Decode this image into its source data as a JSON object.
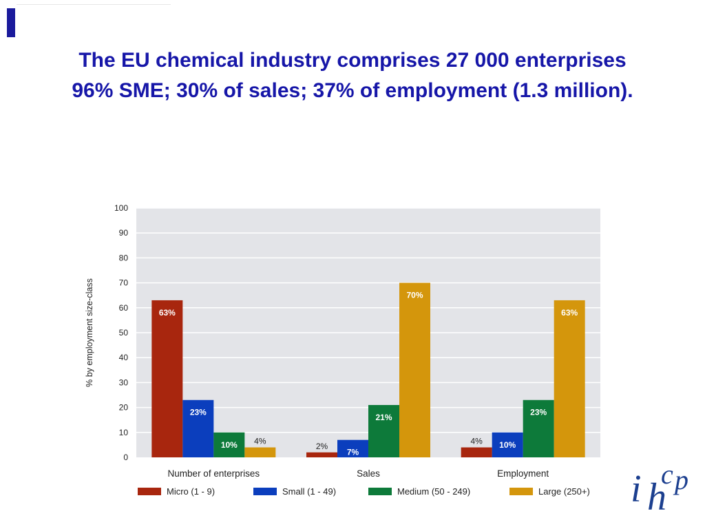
{
  "title": {
    "line1": "The EU chemical industry comprises 27 000 enterprises",
    "line2": "96% SME; 30% of sales; 37% of employment (1.3 million)."
  },
  "logo": {
    "name": "ihcp-logo",
    "text": "ihcp"
  },
  "chart_data": {
    "type": "bar",
    "categories": [
      "Number of enterprises",
      "Sales",
      "Employment"
    ],
    "series": [
      {
        "name": "Micro (1 - 9)",
        "color": "#a8260e",
        "values": [
          63,
          2,
          4
        ],
        "labels": [
          "63%",
          "2%",
          "4%"
        ]
      },
      {
        "name": "Small (1 - 49)",
        "color": "#0b3ebd",
        "values": [
          23,
          7,
          10
        ],
        "labels": [
          "23%",
          "7%",
          "10%"
        ]
      },
      {
        "name": "Medium (50 - 249)",
        "color": "#0d7a3a",
        "values": [
          10,
          21,
          23
        ],
        "labels": [
          "10%",
          "21%",
          "23%"
        ]
      },
      {
        "name": "Large (250+)",
        "color": "#d4960c",
        "values": [
          4,
          70,
          63
        ],
        "labels": [
          "4%",
          "70%",
          "63%"
        ]
      }
    ],
    "ylabel": "% by employment size-class",
    "xlabel": "",
    "ylim": [
      0,
      100
    ],
    "yticks": [
      0,
      10,
      20,
      30,
      40,
      50,
      60,
      70,
      80,
      90,
      100
    ],
    "grid": true,
    "legend": "bottom",
    "plot_background": "#e3e4e8",
    "grid_color": "#ffffff"
  }
}
